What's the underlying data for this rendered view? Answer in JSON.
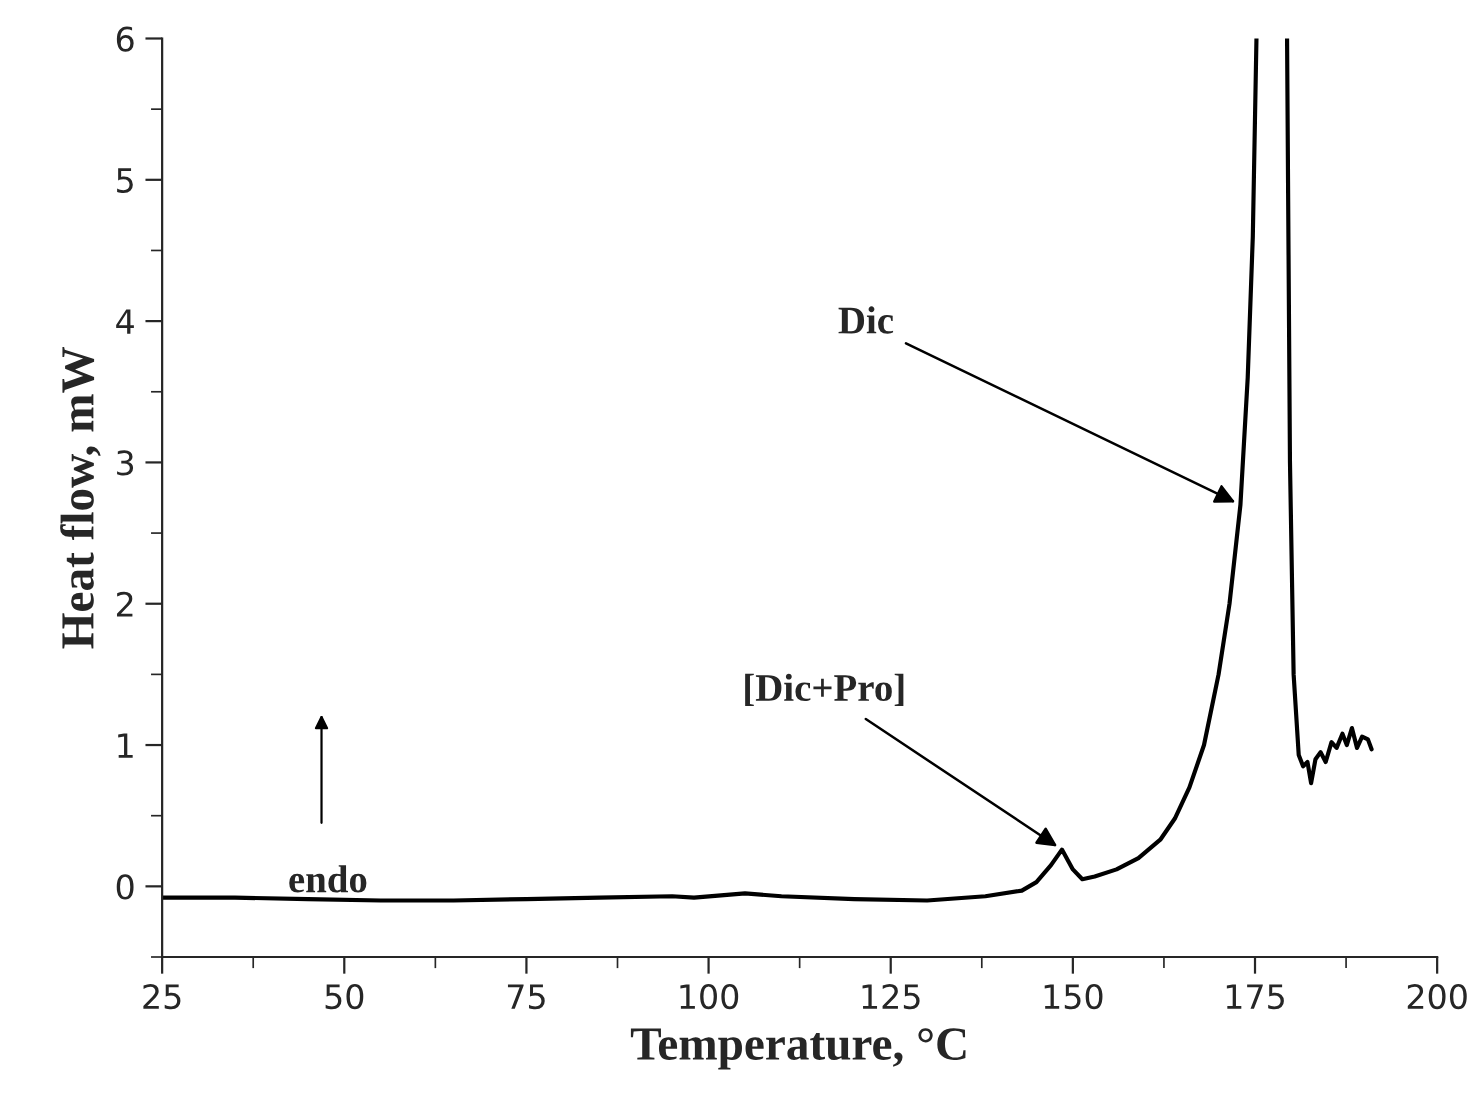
{
  "chart_data": {
    "type": "line",
    "xlabel": "Temperature, °C",
    "ylabel": "Heat flow, mW",
    "xlim": [
      25,
      200
    ],
    "xticks": [
      25,
      50,
      75,
      100,
      125,
      150,
      175,
      200
    ],
    "ylim": [
      -0.5,
      6
    ],
    "yticks": [
      0,
      1,
      2,
      3,
      4,
      5,
      6
    ],
    "series": [
      {
        "color": "#000000",
        "x": [
          25,
          35,
          45,
          55,
          65,
          75,
          85,
          95,
          98,
          105,
          110,
          120,
          130,
          138,
          143,
          145,
          147,
          148.5,
          150,
          151.3,
          153,
          156,
          159,
          162,
          164,
          166,
          168,
          170,
          171.5,
          173,
          174,
          174.7,
          175.2,
          177,
          179.4,
          179.8,
          180.3,
          181,
          181.6,
          182.2,
          182.7,
          183.3,
          184,
          184.7,
          185.5,
          186.2,
          187,
          187.6,
          188.3,
          189,
          189.7,
          190.5,
          191
        ],
        "values": [
          -0.08,
          -0.08,
          -0.09,
          -0.1,
          -0.1,
          -0.09,
          -0.08,
          -0.07,
          -0.08,
          -0.05,
          -0.07,
          -0.09,
          -0.1,
          -0.07,
          -0.03,
          0.03,
          0.15,
          0.26,
          0.12,
          0.05,
          0.07,
          0.12,
          0.2,
          0.33,
          0.48,
          0.7,
          1.0,
          1.5,
          2.0,
          2.7,
          3.6,
          4.6,
          6.0,
          null,
          6.0,
          3.0,
          1.5,
          0.93,
          0.85,
          0.88,
          0.73,
          0.9,
          0.95,
          0.88,
          1.02,
          0.98,
          1.08,
          1.0,
          1.12,
          0.98,
          1.06,
          1.04,
          0.97
        ]
      }
    ],
    "annotations": [
      {
        "text": "Dic",
        "x": 173,
        "y": 2.7
      },
      {
        "text": "[Dic+Pro]",
        "x": 148.5,
        "y": 0.26
      },
      "endo"
    ],
    "grid": false,
    "legend": false,
    "line_style": "solid",
    "marker": "none"
  }
}
